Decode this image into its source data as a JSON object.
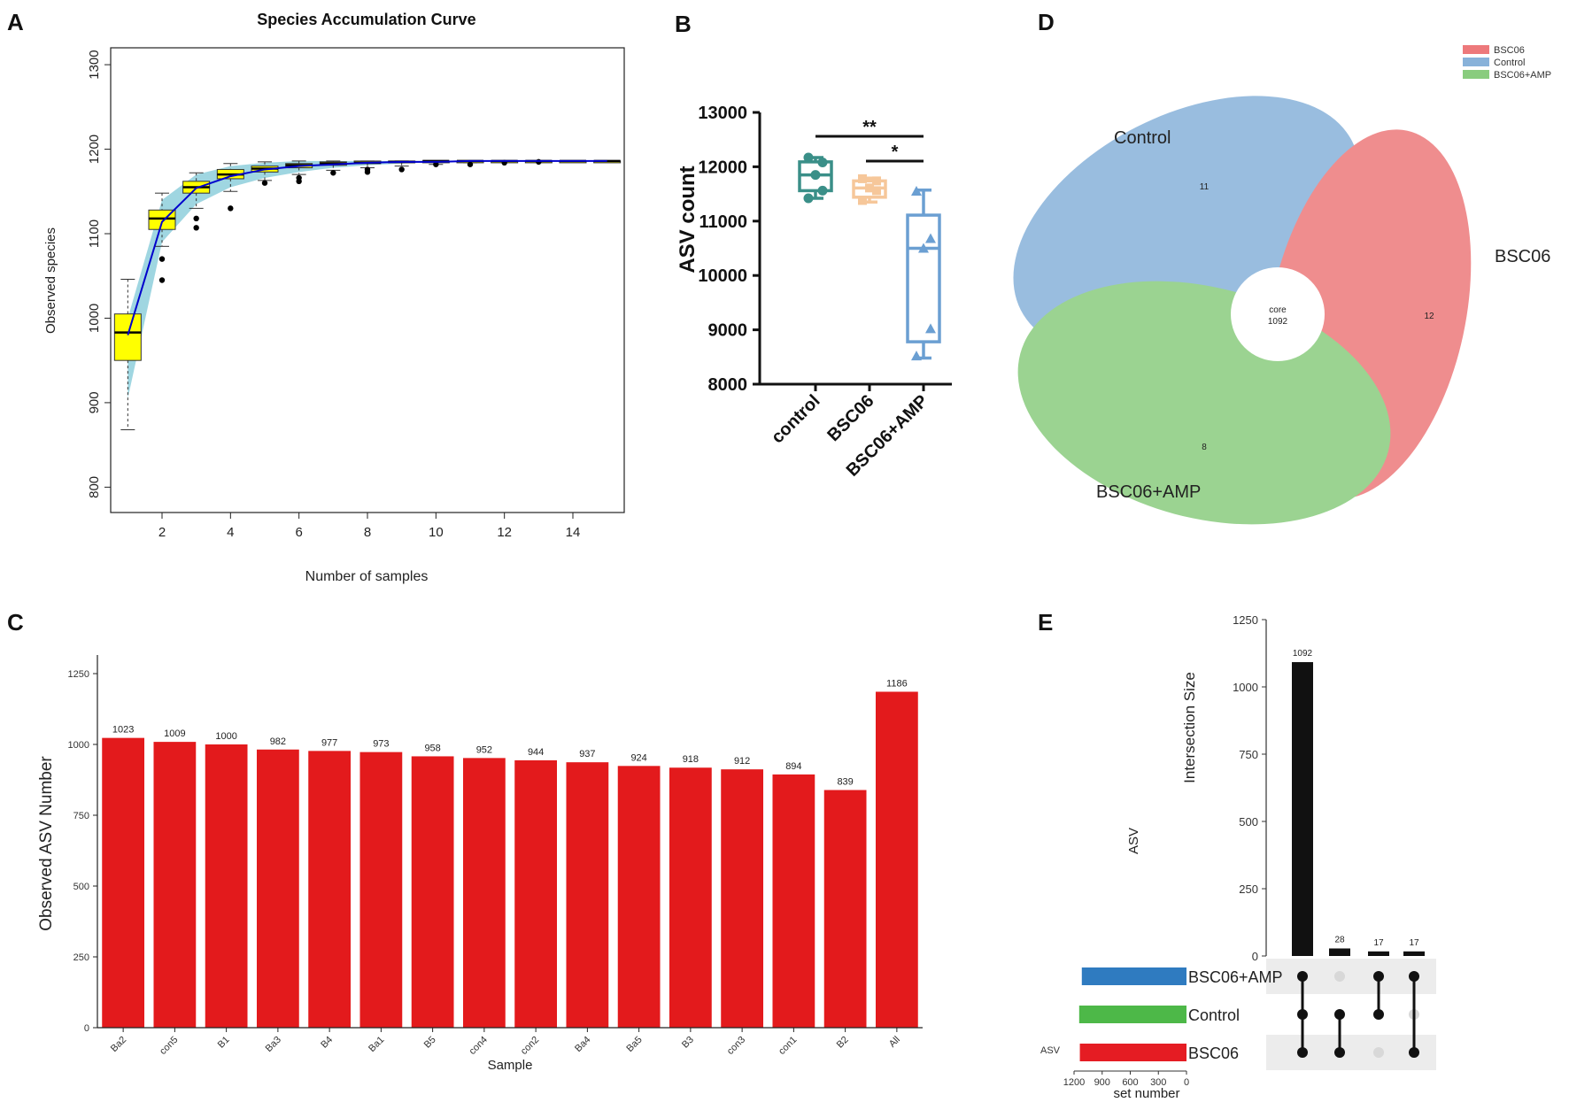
{
  "panels": {
    "A": "A",
    "B": "B",
    "C": "C",
    "D": "D",
    "E": "E"
  },
  "chart_data": [
    {
      "id": "A",
      "type": "box",
      "title": "Species Accumulation Curve",
      "xlabel": "Number of samples",
      "ylabel": "Observed species",
      "xlim": [
        0.5,
        15.5
      ],
      "ylim": [
        770,
        1320
      ],
      "xticks": [
        2,
        4,
        6,
        8,
        10,
        12,
        14
      ],
      "yticks": [
        800,
        900,
        1000,
        1100,
        1200,
        1300
      ],
      "band_color": "#8ecfdc",
      "box_color": "#ffff00",
      "line_color": "#0000cc",
      "boxes": [
        {
          "x": 1,
          "wlo": 868,
          "q1": 950,
          "med": 983,
          "q3": 1005,
          "whi": 1046,
          "mean": 980,
          "out": []
        },
        {
          "x": 2,
          "wlo": 1085,
          "q1": 1105,
          "med": 1118,
          "q3": 1128,
          "whi": 1148,
          "mean": 1114,
          "out": [
            1070,
            1045
          ]
        },
        {
          "x": 3,
          "wlo": 1130,
          "q1": 1148,
          "med": 1155,
          "q3": 1162,
          "whi": 1172,
          "mean": 1154,
          "out": [
            1118,
            1107
          ]
        },
        {
          "x": 4,
          "wlo": 1150,
          "q1": 1165,
          "med": 1170,
          "q3": 1176,
          "whi": 1183,
          "mean": 1168,
          "out": [
            1130
          ]
        },
        {
          "x": 5,
          "wlo": 1163,
          "q1": 1173,
          "med": 1177,
          "q3": 1180,
          "whi": 1185,
          "mean": 1176,
          "out": [
            1160
          ]
        },
        {
          "x": 6,
          "wlo": 1170,
          "q1": 1178,
          "med": 1181,
          "q3": 1183,
          "whi": 1186,
          "mean": 1180,
          "out": [
            1166,
            1162
          ]
        },
        {
          "x": 7,
          "wlo": 1175,
          "q1": 1181,
          "med": 1183,
          "q3": 1185,
          "whi": 1186,
          "mean": 1182,
          "out": [
            1172
          ]
        },
        {
          "x": 8,
          "wlo": 1178,
          "q1": 1183,
          "med": 1184,
          "q3": 1186,
          "whi": 1186,
          "mean": 1184,
          "out": [
            1176,
            1173
          ]
        },
        {
          "x": 9,
          "wlo": 1180,
          "q1": 1184,
          "med": 1185,
          "q3": 1186,
          "whi": 1186,
          "mean": 1185,
          "out": [
            1176
          ]
        },
        {
          "x": 10,
          "wlo": 1182,
          "q1": 1185,
          "med": 1186,
          "q3": 1186,
          "whi": 1186,
          "mean": 1185,
          "out": [
            1182
          ]
        },
        {
          "x": 11,
          "wlo": 1184,
          "q1": 1185,
          "med": 1186,
          "q3": 1186,
          "whi": 1186,
          "mean": 1186,
          "out": [
            1182
          ]
        },
        {
          "x": 12,
          "wlo": 1185,
          "q1": 1186,
          "med": 1186,
          "q3": 1186,
          "whi": 1186,
          "mean": 1186,
          "out": [
            1184
          ]
        },
        {
          "x": 13,
          "wlo": 1185,
          "q1": 1186,
          "med": 1186,
          "q3": 1186,
          "whi": 1186,
          "mean": 1186,
          "out": [
            1185
          ]
        },
        {
          "x": 14,
          "wlo": 1186,
          "q1": 1186,
          "med": 1186,
          "q3": 1186,
          "whi": 1186,
          "mean": 1186,
          "out": []
        },
        {
          "x": 15,
          "wlo": 1186,
          "q1": 1186,
          "med": 1186,
          "q3": 1186,
          "whi": 1186,
          "mean": 1186,
          "out": []
        }
      ],
      "band_upper": [
        1000,
        1140,
        1170,
        1180,
        1184,
        1186,
        1186,
        1186,
        1186,
        1186,
        1186,
        1186,
        1186,
        1186,
        1186
      ],
      "band_lower": [
        905,
        1090,
        1135,
        1155,
        1166,
        1173,
        1178,
        1181,
        1183,
        1185,
        1186,
        1186,
        1186,
        1186,
        1186
      ]
    },
    {
      "id": "B",
      "type": "box",
      "ylabel": "ASV count",
      "ylim": [
        8000,
        13000
      ],
      "yticks": [
        8000,
        9000,
        10000,
        11000,
        12000,
        13000
      ],
      "categories": [
        "control",
        "BSC06",
        "BSC06+AMP"
      ],
      "colors": [
        "#3a8f88",
        "#f6c79a",
        "#6b9fd2"
      ],
      "markers": [
        "circle",
        "square",
        "triangle"
      ],
      "boxes": [
        {
          "min": 11420,
          "q1": 11560,
          "med": 11850,
          "q3": 12090,
          "max": 12170,
          "points": [
            12170,
            12080,
            11850,
            11560,
            11420
          ]
        },
        {
          "min": 11350,
          "q1": 11440,
          "med": 11610,
          "q3": 11740,
          "max": 11790,
          "points": [
            11780,
            11740,
            11610,
            11560,
            11380
          ]
        },
        {
          "min": 8480,
          "q1": 8780,
          "med": 10500,
          "q3": 11110,
          "max": 11570,
          "points": [
            11550,
            10680,
            10500,
            9020,
            8520
          ]
        }
      ],
      "significance": [
        {
          "from": "control",
          "to": "BSC06+AMP",
          "label": "**"
        },
        {
          "from": "BSC06",
          "to": "BSC06+AMP",
          "label": "*"
        }
      ]
    },
    {
      "id": "C",
      "type": "bar",
      "xlabel": "Sample",
      "ylabel": "Observed ASV Number",
      "ylim": [
        0,
        1300
      ],
      "yticks": [
        0,
        250,
        500,
        750,
        1000,
        1250
      ],
      "color": "#e31a1c",
      "categories": [
        "Ba2",
        "con5",
        "B1",
        "Ba3",
        "B4",
        "Ba1",
        "B5",
        "con4",
        "con2",
        "Ba4",
        "Ba5",
        "B3",
        "con3",
        "con1",
        "B2",
        "All"
      ],
      "values": [
        1023,
        1009,
        1000,
        982,
        977,
        973,
        958,
        952,
        944,
        937,
        924,
        918,
        912,
        894,
        839,
        1186
      ]
    },
    {
      "id": "D",
      "type": "venn",
      "sets": [
        {
          "name": "Control",
          "legend": "Control",
          "color": "#6a9fd0",
          "unique": "11"
        },
        {
          "name": "BSC06",
          "legend": "BSC06",
          "color": "#e8585a",
          "unique": "12"
        },
        {
          "name": "BSC06+AMP",
          "legend": "BSC06+AMP",
          "color": "#6cbf5e",
          "unique": "8"
        }
      ],
      "core_label": "core",
      "core_value": "1092"
    },
    {
      "id": "E",
      "type": "upset",
      "ylabel": "Intersection Size",
      "side_label": "ASV",
      "set_axis_label": "set number",
      "set_axis_ticks": [
        1200,
        900,
        600,
        300,
        0
      ],
      "set_axis_max": 1200,
      "yticks": [
        0,
        250,
        500,
        750,
        1000,
        1250
      ],
      "ylim": [
        0,
        1250
      ],
      "intersections": [
        1092,
        28,
        17,
        17
      ],
      "intersection_labels": [
        "1092",
        "28",
        "17",
        "17"
      ],
      "sets": [
        {
          "name": "BSC06+AMP",
          "size": 1117,
          "color": "#2f7bc0"
        },
        {
          "name": "Control",
          "size": 1145,
          "color": "#4db848"
        },
        {
          "name": "BSC06",
          "size": 1138,
          "color": "#e51c23"
        }
      ],
      "matrix": [
        [
          1,
          1,
          1
        ],
        [
          0,
          1,
          1
        ],
        [
          1,
          1,
          0
        ],
        [
          1,
          0,
          1
        ]
      ]
    }
  ]
}
